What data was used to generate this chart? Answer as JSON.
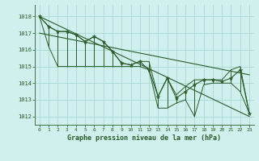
{
  "xlabel": "Graphe pression niveau de la mer (hPa)",
  "bg_color": "#cff0ec",
  "grid_color": "#aad8d4",
  "line_color": "#2a5c2a",
  "ylim": [
    1011.5,
    1018.7
  ],
  "xlim": [
    -0.5,
    23.5
  ],
  "yticks": [
    1012,
    1013,
    1014,
    1015,
    1016,
    1017,
    1018
  ],
  "xticks": [
    0,
    1,
    2,
    3,
    4,
    5,
    6,
    7,
    8,
    9,
    10,
    11,
    12,
    13,
    14,
    15,
    16,
    17,
    18,
    19,
    20,
    21,
    22,
    23
  ],
  "hours": [
    0,
    1,
    2,
    3,
    4,
    5,
    6,
    7,
    8,
    9,
    10,
    11,
    12,
    13,
    14,
    15,
    16,
    17,
    18,
    19,
    20,
    21,
    22,
    23
  ],
  "pressure": [
    1018.0,
    1017.4,
    1017.1,
    1017.1,
    1016.9,
    1016.5,
    1016.8,
    1016.5,
    1015.9,
    1015.2,
    1015.1,
    1015.3,
    1014.8,
    1013.2,
    1014.3,
    1013.1,
    1013.5,
    1013.9,
    1014.2,
    1014.2,
    1014.1,
    1014.3,
    1014.8,
    1012.2
  ],
  "min_vals": [
    1018.0,
    1016.2,
    1015.0,
    1015.0,
    1015.0,
    1015.0,
    1015.0,
    1015.0,
    1015.0,
    1015.0,
    1015.0,
    1015.0,
    1014.8,
    1012.5,
    1012.5,
    1012.8,
    1013.0,
    1012.0,
    1013.9,
    1014.0,
    1014.0,
    1014.0,
    1013.5,
    1012.2
  ],
  "max_vals": [
    1018.0,
    1017.4,
    1017.1,
    1017.1,
    1016.9,
    1016.5,
    1016.8,
    1016.5,
    1015.9,
    1015.2,
    1015.1,
    1015.3,
    1015.3,
    1013.2,
    1014.3,
    1013.3,
    1013.8,
    1014.2,
    1014.2,
    1014.2,
    1014.2,
    1014.8,
    1015.0,
    1012.2
  ],
  "trend1_y0": 1018.0,
  "trend1_y1": 1012.0,
  "trend2_y0": 1017.0,
  "trend2_y1": 1014.5
}
